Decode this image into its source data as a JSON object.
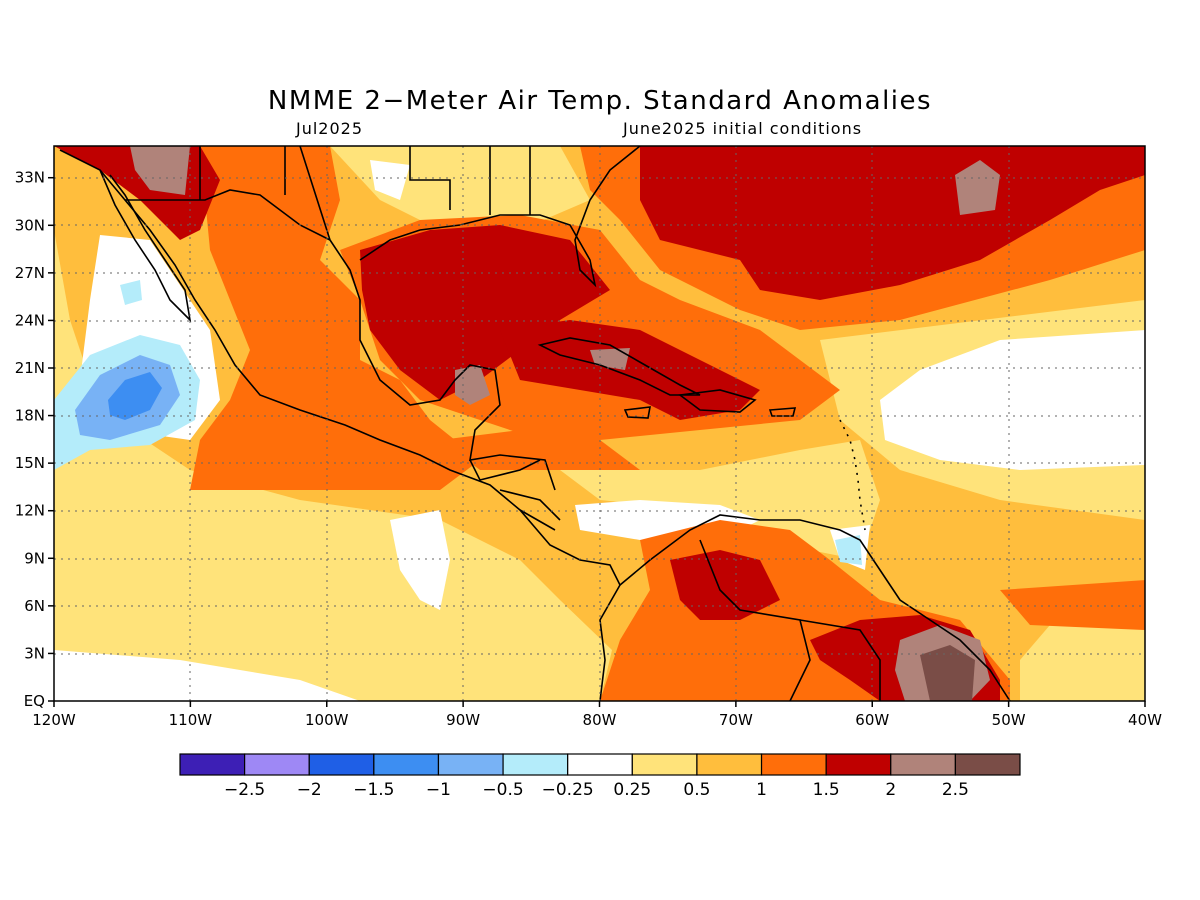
{
  "title": "NMME 2−Meter Air Temp. Standard Anomalies",
  "subtitle_left": "Jul2025",
  "subtitle_right": "June2025 initial conditions",
  "map": {
    "lon_range": [
      -120,
      -40
    ],
    "lat_range": [
      0,
      35
    ],
    "lon_ticks": [
      "120W",
      "110W",
      "100W",
      "90W",
      "80W",
      "70W",
      "60W",
      "50W",
      "40W"
    ],
    "lat_ticks": [
      "EQ",
      "3N",
      "6N",
      "9N",
      "12N",
      "15N",
      "18N",
      "21N",
      "24N",
      "27N",
      "30N",
      "33N"
    ],
    "grid": "dotted"
  },
  "colorbar": {
    "colors": [
      "#3d1fb5",
      "#9e88f5",
      "#1f5fe6",
      "#3d8ef2",
      "#78b2f5",
      "#b4ecfa",
      "#ffffff",
      "#ffe37a",
      "#ffbe3d",
      "#ff6e0a",
      "#bf0000",
      "#b0837a",
      "#7a4d47"
    ],
    "labels": [
      "−2.5",
      "−2",
      "−1.5",
      "−1",
      "−0.5",
      "−0.25",
      "0.25",
      "0.5",
      "1",
      "1.5",
      "2",
      "2.5"
    ]
  }
}
